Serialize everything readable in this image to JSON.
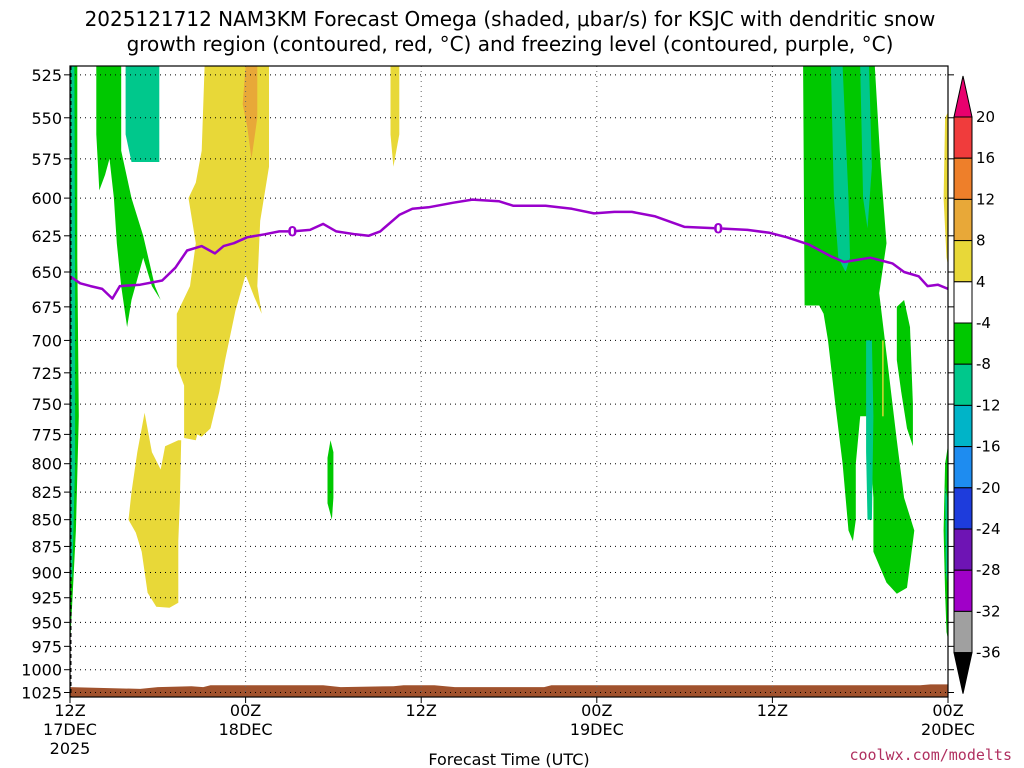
{
  "chart_data": {
    "type": "heatmap",
    "title_line1": "2025121712 NAM3KM Forecast Omega (shaded, μbar/s) for KSJC with dendritic snow",
    "title_line2": "growth region (contoured, red, °C) and freezing level (contoured, purple, °C)",
    "xlabel": "Forecast Time (UTC)",
    "ylabel": "",
    "credit": "coolwx.com/modelts",
    "y_axis": {
      "scale": "pressure",
      "ylim": [
        1030,
        520
      ],
      "ticks": [
        525,
        550,
        575,
        600,
        625,
        650,
        675,
        700,
        725,
        750,
        775,
        800,
        825,
        850,
        875,
        900,
        925,
        950,
        975,
        1000,
        1025
      ]
    },
    "x_axis": {
      "range_hours": [
        0,
        60
      ],
      "ticks": [
        {
          "h": 0,
          "label": "12Z",
          "sub1": "17DEC",
          "sub2": "2025"
        },
        {
          "h": 12,
          "label": "00Z",
          "sub1": "18DEC",
          "sub2": ""
        },
        {
          "h": 24,
          "label": "12Z",
          "sub1": "",
          "sub2": ""
        },
        {
          "h": 36,
          "label": "00Z",
          "sub1": "19DEC",
          "sub2": ""
        },
        {
          "h": 48,
          "label": "12Z",
          "sub1": "",
          "sub2": ""
        },
        {
          "h": 60,
          "label": "00Z",
          "sub1": "20DEC",
          "sub2": ""
        }
      ]
    },
    "colorbar": {
      "levels": [
        20,
        16,
        12,
        8,
        4,
        -4,
        -8,
        -12,
        -16,
        -20,
        -24,
        -28,
        -32,
        -36
      ],
      "colors": [
        "#e8006e",
        "#f03c3c",
        "#ee7f2a",
        "#e8a838",
        "#e8d838",
        "#ffffff",
        "#00c800",
        "#00c88c",
        "#00b4c8",
        "#1e8cf0",
        "#1e3cdc",
        "#6e14b4",
        "#a000c8",
        "#a0a0a0",
        "#000000"
      ]
    },
    "freezing_level": {
      "value_label": "0",
      "color": "#9900cc",
      "label_hours": [
        15.2,
        44.3
      ],
      "points": [
        [
          0,
          653
        ],
        [
          0.7,
          658
        ],
        [
          1.4,
          660
        ],
        [
          2.2,
          662
        ],
        [
          2.9,
          669
        ],
        [
          3.4,
          660
        ],
        [
          4.8,
          659
        ],
        [
          6.3,
          656
        ],
        [
          7.2,
          647
        ],
        [
          8.0,
          635
        ],
        [
          9.0,
          632
        ],
        [
          9.9,
          637
        ],
        [
          10.5,
          632
        ],
        [
          11.2,
          630
        ],
        [
          12.1,
          626
        ],
        [
          13.3,
          624
        ],
        [
          14.3,
          622
        ],
        [
          15.2,
          622
        ],
        [
          16.4,
          621
        ],
        [
          17.3,
          617
        ],
        [
          18.2,
          622
        ],
        [
          19.5,
          624
        ],
        [
          20.4,
          625
        ],
        [
          21.2,
          622
        ],
        [
          22.5,
          611
        ],
        [
          23.4,
          607
        ],
        [
          24.5,
          606
        ],
        [
          26.2,
          603
        ],
        [
          27.5,
          601
        ],
        [
          29.3,
          602
        ],
        [
          30.3,
          605
        ],
        [
          32.5,
          605
        ],
        [
          34.3,
          607
        ],
        [
          35.8,
          610
        ],
        [
          37.2,
          609
        ],
        [
          38.4,
          609
        ],
        [
          40.0,
          612
        ],
        [
          42.0,
          619
        ],
        [
          44.3,
          620
        ],
        [
          46.3,
          621
        ],
        [
          47.8,
          623
        ],
        [
          49.0,
          626
        ],
        [
          50.5,
          631
        ],
        [
          52.0,
          639
        ],
        [
          52.9,
          643
        ],
        [
          54.7,
          640
        ],
        [
          56.2,
          644
        ],
        [
          57.0,
          650
        ],
        [
          58.0,
          653
        ],
        [
          58.6,
          660
        ],
        [
          59.3,
          659
        ],
        [
          60.0,
          662
        ]
      ]
    },
    "omega_regions": [
      {
        "level": "-8 to -4",
        "color": "#00c800",
        "points": [
          [
            0,
            976
          ],
          [
            0.4,
            860
          ],
          [
            0.6,
            760
          ],
          [
            0.5,
            640
          ],
          [
            0.5,
            520
          ],
          [
            -0.1,
            520
          ],
          [
            -0.1,
            976
          ]
        ]
      },
      {
        "level": "-12 to -8",
        "color": "#00c88c",
        "points": [
          [
            0.15,
            905
          ],
          [
            0.35,
            800
          ],
          [
            0.35,
            660
          ],
          [
            0.3,
            520
          ],
          [
            0.05,
            520
          ],
          [
            0.05,
            905
          ]
        ]
      },
      {
        "level": "-8 to -4",
        "color": "#00c800",
        "points": [
          [
            1.8,
            520
          ],
          [
            3.5,
            520
          ],
          [
            3.5,
            570
          ],
          [
            4.2,
            600
          ],
          [
            5.0,
            625
          ],
          [
            5.8,
            660
          ],
          [
            6.2,
            670
          ],
          [
            5.6,
            660
          ],
          [
            5.0,
            640
          ],
          [
            4.6,
            655
          ],
          [
            4.2,
            670
          ],
          [
            3.9,
            690
          ],
          [
            3.5,
            660
          ],
          [
            3.2,
            630
          ],
          [
            3.0,
            600
          ],
          [
            2.7,
            575
          ],
          [
            2.4,
            585
          ],
          [
            2.0,
            595
          ],
          [
            1.8,
            560
          ]
        ]
      },
      {
        "level": "-12 to -8",
        "color": "#00c88c",
        "points": [
          [
            3.8,
            520
          ],
          [
            6.1,
            520
          ],
          [
            6.1,
            577
          ],
          [
            4.2,
            577
          ],
          [
            3.8,
            560
          ]
        ]
      },
      {
        "level": "4 to 8",
        "color": "#e8d838",
        "points": [
          [
            9.2,
            520
          ],
          [
            13.6,
            520
          ],
          [
            13.6,
            580
          ],
          [
            13.0,
            615
          ],
          [
            12.8,
            660
          ],
          [
            13.1,
            680
          ],
          [
            12.6,
            668
          ],
          [
            12.0,
            652
          ],
          [
            11.3,
            678
          ],
          [
            10.6,
            715
          ],
          [
            10.2,
            740
          ],
          [
            9.6,
            770
          ],
          [
            9.0,
            777
          ],
          [
            8.7,
            775
          ],
          [
            8.6,
            780
          ],
          [
            7.8,
            778
          ],
          [
            7.8,
            735
          ],
          [
            7.3,
            720
          ],
          [
            7.3,
            680
          ],
          [
            8.2,
            660
          ],
          [
            8.6,
            630
          ],
          [
            8.1,
            600
          ],
          [
            8.6,
            590
          ],
          [
            9.0,
            570
          ]
        ]
      },
      {
        "level": "8 to 12",
        "color": "#e8a838",
        "points": [
          [
            12.0,
            520
          ],
          [
            12.8,
            520
          ],
          [
            12.8,
            550
          ],
          [
            12.4,
            575
          ],
          [
            12.1,
            555
          ],
          [
            11.8,
            542
          ]
        ]
      },
      {
        "level": "4 to 8",
        "color": "#e8d838",
        "points": [
          [
            4.0,
            850
          ],
          [
            4.2,
            825
          ],
          [
            4.6,
            790
          ],
          [
            5.1,
            757
          ],
          [
            5.6,
            790
          ],
          [
            6.2,
            805
          ],
          [
            6.5,
            785
          ],
          [
            7.4,
            780
          ],
          [
            7.6,
            780
          ],
          [
            7.5,
            835
          ],
          [
            7.4,
            870
          ],
          [
            7.4,
            930
          ],
          [
            6.8,
            935
          ],
          [
            5.9,
            934
          ],
          [
            5.3,
            920
          ],
          [
            4.9,
            880
          ],
          [
            4.5,
            862
          ]
        ]
      },
      {
        "level": "4 to 8",
        "color": "#e8d838",
        "points": [
          [
            21.9,
            520
          ],
          [
            22.5,
            520
          ],
          [
            22.5,
            560
          ],
          [
            22.1,
            580
          ],
          [
            21.9,
            560
          ]
        ]
      },
      {
        "level": "-8 to -4",
        "color": "#00c800",
        "points": [
          [
            17.8,
            780
          ],
          [
            18.0,
            790
          ],
          [
            18.0,
            830
          ],
          [
            17.9,
            850
          ],
          [
            17.6,
            835
          ],
          [
            17.6,
            795
          ]
        ]
      },
      {
        "level": "-8 to -4",
        "color": "#00c800",
        "points": [
          [
            50.1,
            520
          ],
          [
            55.0,
            520
          ],
          [
            55.4,
            580
          ],
          [
            55.8,
            630
          ],
          [
            55.3,
            665
          ],
          [
            55.9,
            720
          ],
          [
            56.5,
            780
          ],
          [
            57.0,
            830
          ],
          [
            57.7,
            860
          ],
          [
            57.2,
            915
          ],
          [
            56.5,
            921
          ],
          [
            55.8,
            910
          ],
          [
            54.9,
            880
          ],
          [
            54.9,
            830
          ],
          [
            54.7,
            790
          ],
          [
            54.5,
            760
          ],
          [
            54.0,
            760
          ],
          [
            53.7,
            800
          ],
          [
            53.7,
            850
          ],
          [
            53.5,
            870
          ],
          [
            53.2,
            860
          ],
          [
            52.8,
            800
          ],
          [
            52.3,
            750
          ],
          [
            51.8,
            700
          ],
          [
            51.5,
            680
          ],
          [
            51.2,
            674
          ],
          [
            50.2,
            674
          ]
        ]
      },
      {
        "level": "-8 to -4",
        "color": "#00c800",
        "points": [
          [
            56.5,
            675
          ],
          [
            57.0,
            670
          ],
          [
            57.4,
            690
          ],
          [
            57.6,
            750
          ],
          [
            57.6,
            785
          ],
          [
            57.2,
            770
          ],
          [
            56.8,
            740
          ],
          [
            56.5,
            715
          ]
        ]
      },
      {
        "level": "-12 to -8",
        "color": "#00c88c",
        "points": [
          [
            52.0,
            520
          ],
          [
            52.8,
            520
          ],
          [
            53.0,
            560
          ],
          [
            53.2,
            600
          ],
          [
            53.3,
            640
          ],
          [
            53.0,
            650
          ],
          [
            52.5,
            640
          ],
          [
            52.2,
            600
          ]
        ]
      },
      {
        "level": "-12 to -8",
        "color": "#00c88c",
        "points": [
          [
            54.0,
            520
          ],
          [
            54.6,
            520
          ],
          [
            54.8,
            580
          ],
          [
            54.5,
            620
          ],
          [
            54.2,
            600
          ]
        ]
      },
      {
        "level": "-12 to -8",
        "color": "#00c88c",
        "points": [
          [
            54.4,
            700
          ],
          [
            54.8,
            700
          ],
          [
            54.9,
            760
          ],
          [
            54.8,
            850
          ],
          [
            54.5,
            850
          ],
          [
            54.4,
            790
          ]
        ]
      },
      {
        "level": "4 to 8",
        "color": "#e8d838",
        "points": [
          [
            55.5,
            700
          ],
          [
            55.6,
            700
          ],
          [
            55.6,
            760
          ],
          [
            55.5,
            760
          ]
        ]
      },
      {
        "level": "4 to 8",
        "color": "#e8d838",
        "points": [
          [
            59.8,
            550
          ],
          [
            60.1,
            545
          ],
          [
            60.1,
            650
          ],
          [
            59.9,
            640
          ],
          [
            59.7,
            600
          ]
        ]
      },
      {
        "level": "-8 to -4",
        "color": "#00c800",
        "points": [
          [
            59.7,
            860
          ],
          [
            59.8,
            800
          ],
          [
            60.1,
            776
          ],
          [
            60.1,
            975
          ],
          [
            59.9,
            960
          ],
          [
            59.8,
            920
          ]
        ]
      },
      {
        "level": "-12 to -8",
        "color": "#00c88c",
        "points": [
          [
            59.8,
            820
          ],
          [
            59.95,
            830
          ],
          [
            59.95,
            910
          ],
          [
            59.85,
            900
          ]
        ]
      }
    ],
    "terrain": {
      "color": "#a0522d",
      "top_pressure": [
        [
          0,
          1019
        ],
        [
          4.8,
          1021
        ],
        [
          6.0,
          1019
        ],
        [
          8.3,
          1018
        ],
        [
          9.1,
          1019
        ],
        [
          9.6,
          1017
        ],
        [
          17.3,
          1017
        ],
        [
          18.5,
          1019
        ],
        [
          22.1,
          1018
        ],
        [
          22.8,
          1017
        ],
        [
          24.9,
          1017
        ],
        [
          26.3,
          1019
        ],
        [
          32.4,
          1019
        ],
        [
          32.9,
          1017
        ],
        [
          58.1,
          1017
        ],
        [
          58.8,
          1016
        ],
        [
          60,
          1016
        ]
      ]
    }
  }
}
